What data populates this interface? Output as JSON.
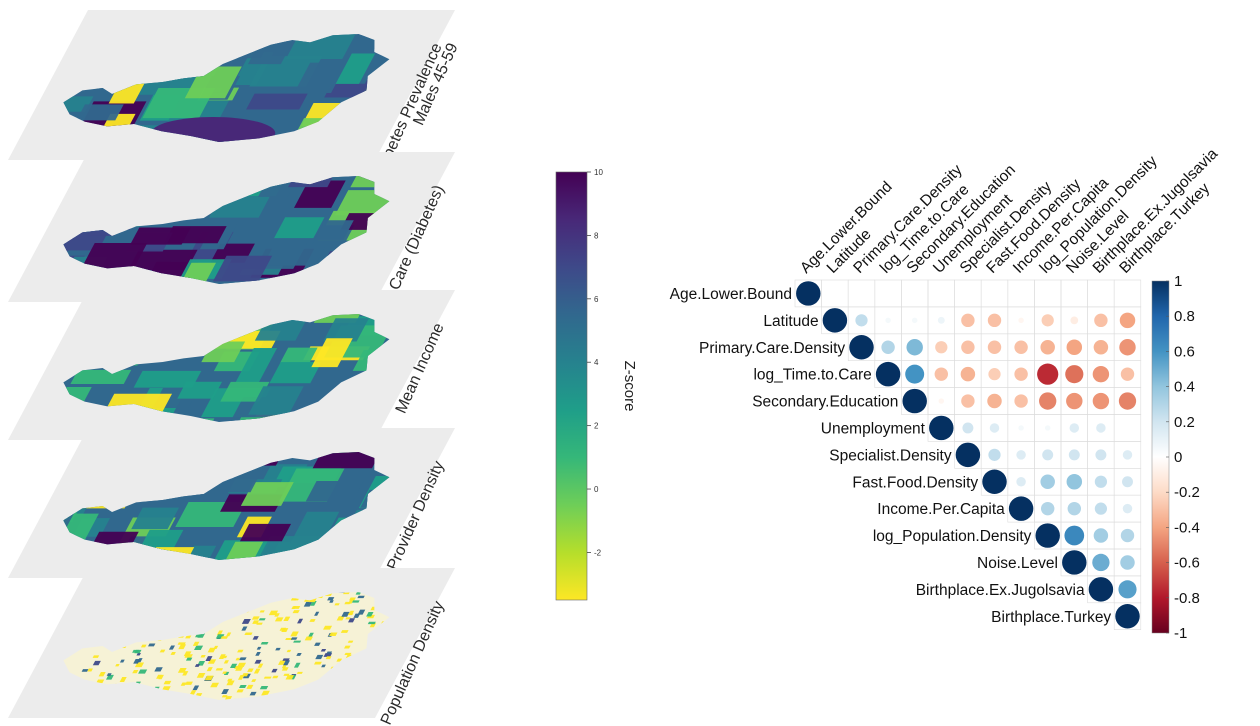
{
  "map_layers": [
    {
      "label_lines": [
        "Diabetes Prevalence",
        "Males 45-59"
      ]
    },
    {
      "label_lines": [
        "Time to Care (Diabetes)"
      ]
    },
    {
      "label_lines": [
        "Mean Income"
      ]
    },
    {
      "label_lines": [
        "Care Provider Density"
      ]
    },
    {
      "label_lines": [
        "Population Density"
      ]
    }
  ],
  "zscore_colorbar": {
    "label": "Z-score",
    "min": -3.5,
    "max": 10,
    "ticks": [
      "10",
      "8",
      "6",
      "4",
      "2",
      "0",
      "-2"
    ],
    "tick_values": [
      10,
      8,
      6,
      4,
      2,
      0,
      -2
    ],
    "colors": [
      "#fde725",
      "#b5de2b",
      "#6ece58",
      "#35b779",
      "#1f9e89",
      "#26828e",
      "#31688e",
      "#3e4989",
      "#482878",
      "#440154"
    ]
  },
  "chart_data": {
    "type": "heatmap",
    "variables": [
      "Age.Lower.Bound",
      "Latitude",
      "Primary.Care.Density",
      "log_Time.to.Care",
      "Secondary.Education",
      "Unemployment",
      "Specialist.Density",
      "Fast.Food.Density",
      "Income.Per.Capita",
      "log_Population.Density",
      "Noise.Level",
      "Birthplace.Ex.Jugolsavia",
      "Birthplace.Turkey"
    ],
    "matrix": [
      [
        1,
        0,
        0,
        0,
        0,
        0,
        0,
        0,
        0,
        0,
        0,
        0,
        0
      ],
      [
        0,
        1,
        0.25,
        0.05,
        0.05,
        0.08,
        -0.3,
        -0.3,
        -0.05,
        -0.25,
        -0.1,
        -0.3,
        -0.4
      ],
      [
        0,
        0.25,
        1,
        0.3,
        0.45,
        -0.25,
        -0.3,
        -0.3,
        -0.3,
        -0.35,
        -0.4,
        -0.35,
        -0.45
      ],
      [
        0,
        0.05,
        0.3,
        1,
        0.6,
        -0.3,
        -0.35,
        -0.25,
        -0.3,
        -0.75,
        -0.55,
        -0.45,
        -0.3
      ],
      [
        0,
        0.05,
        0.45,
        0.6,
        1,
        -0.05,
        -0.3,
        -0.35,
        -0.3,
        -0.5,
        -0.45,
        -0.45,
        -0.5
      ],
      [
        0,
        0.08,
        -0.25,
        -0.3,
        -0.05,
        1,
        0.2,
        0.15,
        0.05,
        0.05,
        0.15,
        0.15,
        0
      ],
      [
        0,
        -0.3,
        -0.3,
        -0.35,
        -0.3,
        0.2,
        1,
        0.25,
        0.15,
        0.2,
        0.2,
        0.2,
        0.15
      ],
      [
        0,
        -0.3,
        -0.3,
        -0.25,
        -0.35,
        0.15,
        0.25,
        1,
        0.15,
        0.35,
        0.4,
        0.25,
        0.2
      ],
      [
        0,
        -0.05,
        -0.3,
        -0.3,
        -0.3,
        0.05,
        0.15,
        0.15,
        1,
        0.3,
        0.3,
        0.25,
        0.15
      ],
      [
        0,
        -0.25,
        -0.35,
        -0.75,
        -0.5,
        0.05,
        0.2,
        0.35,
        0.3,
        1,
        0.65,
        0.35,
        0.3
      ],
      [
        0,
        -0.1,
        -0.4,
        -0.55,
        -0.45,
        0.15,
        0.2,
        0.4,
        0.3,
        0.65,
        1,
        0.5,
        0.35
      ],
      [
        0,
        -0.3,
        -0.35,
        -0.45,
        -0.45,
        0.15,
        0.2,
        0.25,
        0.25,
        0.35,
        0.5,
        1,
        0.55
      ],
      [
        0,
        -0.4,
        -0.45,
        -0.3,
        -0.5,
        0,
        0.15,
        0.2,
        0.15,
        0.3,
        0.35,
        0.55,
        1
      ]
    ],
    "colorbar": {
      "min": -1,
      "max": 1,
      "ticks": [
        "1",
        "0.8",
        "0.6",
        "0.4",
        "0.2",
        "0",
        "-0.2",
        "-0.4",
        "-0.6",
        "-0.8",
        "-1"
      ],
      "tick_values": [
        1,
        0.8,
        0.6,
        0.4,
        0.2,
        0,
        -0.2,
        -0.4,
        -0.6,
        -0.8,
        -1
      ],
      "colors": [
        "#67001f",
        "#b2182b",
        "#d6604d",
        "#f4a582",
        "#fddbc7",
        "#ffffff",
        "#d1e5f0",
        "#92c5de",
        "#4393c3",
        "#2166ac",
        "#053061"
      ]
    },
    "grid": true
  }
}
